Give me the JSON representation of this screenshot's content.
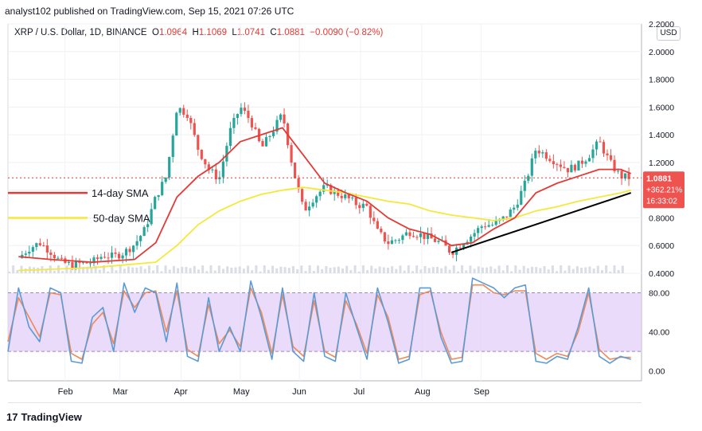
{
  "header": {
    "publisher_line": "analyst102 published on TradingView.com, Sep 15, 2021 07:26 UTC"
  },
  "legend": {
    "symbol": "XRP / U.S. Dollar, 1D, BINANCE",
    "open_label": "O",
    "open": "1.0964",
    "high_label": "H",
    "high": "1.1069",
    "low_label": "L",
    "low": "1.0741",
    "close_label": "C",
    "close": "1.0881",
    "change": "−0.0090 (−0.82%)"
  },
  "currency_button": "USD",
  "price_tag": {
    "price": "1.0881",
    "change": "+362.21%",
    "countdown": "16:33:02"
  },
  "annotations": {
    "sma14": "14-day SMA",
    "sma50": "50-day SMA"
  },
  "footer": {
    "brand": "TradingView"
  },
  "colors": {
    "up": "#26a69a",
    "down": "#ef5350",
    "sma14": "#e53935",
    "sma50": "#f5e83a",
    "stoch_k": "#5b9bd5",
    "stoch_d": "#f0885a",
    "band_fill": "#e1cff7",
    "trendline": "#000000"
  },
  "chart_data": [
    {
      "type": "candlestick",
      "title": "XRP / U.S. Dollar, 1D, BINANCE",
      "x_tick_labels": [
        "Feb",
        "Mar",
        "Apr",
        "May",
        "Jun",
        "Jul",
        "Aug",
        "Sep"
      ],
      "y_tick_labels": [
        "0.4000",
        "0.6000",
        "0.8000",
        "1.0000",
        "1.2000",
        "1.4000",
        "1.6000",
        "1.8000",
        "2.0000",
        "2.2000"
      ],
      "ylim": [
        0.4,
        2.2
      ],
      "close_path": [
        [
          0.5,
          0.51
        ],
        [
          1.0,
          0.58
        ],
        [
          1.5,
          0.62
        ],
        [
          2.0,
          0.56
        ],
        [
          2.5,
          0.48
        ],
        [
          3.0,
          0.46
        ],
        [
          3.5,
          0.47
        ],
        [
          4.0,
          0.48
        ],
        [
          4.5,
          0.53
        ],
        [
          5.0,
          0.52
        ],
        [
          5.5,
          0.55
        ],
        [
          6.0,
          0.61
        ],
        [
          6.5,
          0.72
        ],
        [
          7.0,
          0.95
        ],
        [
          7.5,
          1.1
        ],
        [
          8.0,
          1.6
        ],
        [
          8.5,
          1.55
        ],
        [
          9.0,
          1.3
        ],
        [
          9.5,
          1.15
        ],
        [
          10.0,
          1.08
        ],
        [
          10.5,
          1.42
        ],
        [
          11.0,
          1.6
        ],
        [
          11.5,
          1.5
        ],
        [
          12.0,
          1.3
        ],
        [
          12.5,
          1.42
        ],
        [
          13.0,
          1.55
        ],
        [
          13.5,
          1.15
        ],
        [
          14.0,
          0.85
        ],
        [
          14.5,
          0.95
        ],
        [
          15.0,
          1.02
        ],
        [
          15.5,
          0.98
        ],
        [
          16.0,
          0.95
        ],
        [
          16.5,
          0.9
        ],
        [
          17.0,
          0.88
        ],
        [
          17.5,
          0.7
        ],
        [
          18.0,
          0.62
        ],
        [
          18.5,
          0.65
        ],
        [
          19.0,
          0.7
        ],
        [
          19.5,
          0.68
        ],
        [
          20.0,
          0.65
        ],
        [
          20.5,
          0.62
        ],
        [
          21.0,
          0.55
        ],
        [
          21.5,
          0.62
        ],
        [
          22.0,
          0.68
        ],
        [
          22.5,
          0.75
        ],
        [
          23.0,
          0.75
        ],
        [
          23.5,
          0.8
        ],
        [
          24.0,
          0.88
        ],
        [
          24.5,
          1.05
        ],
        [
          25.0,
          1.3
        ],
        [
          25.5,
          1.25
        ],
        [
          26.0,
          1.2
        ],
        [
          26.5,
          1.15
        ],
        [
          27.0,
          1.18
        ],
        [
          27.5,
          1.25
        ],
        [
          28.0,
          1.35
        ],
        [
          28.5,
          1.2
        ],
        [
          29.0,
          1.1
        ],
        [
          29.5,
          1.0886
        ]
      ],
      "sma14": [
        [
          0.5,
          0.52
        ],
        [
          2,
          0.5
        ],
        [
          4,
          0.48
        ],
        [
          6,
          0.5
        ],
        [
          7,
          0.62
        ],
        [
          8,
          0.95
        ],
        [
          9,
          1.1
        ],
        [
          10,
          1.2
        ],
        [
          11,
          1.35
        ],
        [
          12,
          1.4
        ],
        [
          13,
          1.45
        ],
        [
          14,
          1.25
        ],
        [
          15,
          1.05
        ],
        [
          16,
          0.98
        ],
        [
          17,
          0.92
        ],
        [
          18,
          0.8
        ],
        [
          19,
          0.72
        ],
        [
          20,
          0.68
        ],
        [
          21,
          0.6
        ],
        [
          22,
          0.62
        ],
        [
          23,
          0.72
        ],
        [
          24,
          0.8
        ],
        [
          25,
          0.98
        ],
        [
          26,
          1.05
        ],
        [
          27,
          1.1
        ],
        [
          28,
          1.15
        ],
        [
          29,
          1.15
        ],
        [
          29.5,
          1.12
        ]
      ],
      "sma50": [
        [
          0.5,
          0.42
        ],
        [
          4,
          0.44
        ],
        [
          7,
          0.48
        ],
        [
          8,
          0.6
        ],
        [
          9,
          0.75
        ],
        [
          10,
          0.85
        ],
        [
          11,
          0.92
        ],
        [
          12,
          0.97
        ],
        [
          13,
          1.0
        ],
        [
          14,
          1.02
        ],
        [
          15,
          1.0
        ],
        [
          16,
          0.98
        ],
        [
          17,
          0.95
        ],
        [
          18,
          0.92
        ],
        [
          19,
          0.9
        ],
        [
          20,
          0.85
        ],
        [
          21,
          0.82
        ],
        [
          22,
          0.8
        ],
        [
          23,
          0.78
        ],
        [
          24,
          0.8
        ],
        [
          25,
          0.85
        ],
        [
          26,
          0.88
        ],
        [
          27,
          0.92
        ],
        [
          28,
          0.95
        ],
        [
          29,
          0.98
        ],
        [
          29.5,
          1.0
        ]
      ],
      "trendline": [
        [
          21.0,
          0.55
        ],
        [
          29.5,
          0.98
        ]
      ],
      "last_price": 1.0881,
      "last_price_line": 1.0886
    },
    {
      "type": "line",
      "name": "Stochastic",
      "y_tick_labels": [
        "0.00",
        "40.00",
        "80.00"
      ],
      "ylim": [
        -10,
        100
      ],
      "band": [
        20,
        80
      ],
      "k": [
        [
          0,
          20
        ],
        [
          0.5,
          85
        ],
        [
          1.0,
          45
        ],
        [
          1.5,
          30
        ],
        [
          2.0,
          85
        ],
        [
          2.5,
          80
        ],
        [
          3.0,
          10
        ],
        [
          3.5,
          8
        ],
        [
          4.0,
          55
        ],
        [
          4.5,
          65
        ],
        [
          5.0,
          20
        ],
        [
          5.5,
          90
        ],
        [
          6.0,
          60
        ],
        [
          6.5,
          85
        ],
        [
          7.0,
          80
        ],
        [
          7.5,
          30
        ],
        [
          8.0,
          90
        ],
        [
          8.5,
          15
        ],
        [
          9.0,
          10
        ],
        [
          9.5,
          75
        ],
        [
          10.0,
          20
        ],
        [
          10.5,
          45
        ],
        [
          11.0,
          20
        ],
        [
          11.5,
          92
        ],
        [
          12.0,
          55
        ],
        [
          12.5,
          12
        ],
        [
          13.0,
          85
        ],
        [
          13.5,
          20
        ],
        [
          14.0,
          10
        ],
        [
          14.5,
          80
        ],
        [
          15.0,
          15
        ],
        [
          15.5,
          10
        ],
        [
          16.0,
          80
        ],
        [
          16.5,
          45
        ],
        [
          17.0,
          12
        ],
        [
          17.5,
          85
        ],
        [
          18.0,
          50
        ],
        [
          18.5,
          8
        ],
        [
          19.0,
          12
        ],
        [
          19.5,
          85
        ],
        [
          20.0,
          85
        ],
        [
          20.5,
          35
        ],
        [
          21.0,
          8
        ],
        [
          21.5,
          10
        ],
        [
          22.0,
          95
        ],
        [
          22.5,
          90
        ],
        [
          23.0,
          85
        ],
        [
          23.5,
          75
        ],
        [
          24.0,
          85
        ],
        [
          24.5,
          88
        ],
        [
          25.0,
          10
        ],
        [
          25.5,
          8
        ],
        [
          26.0,
          15
        ],
        [
          26.5,
          12
        ],
        [
          27.0,
          45
        ],
        [
          27.5,
          85
        ],
        [
          28.0,
          15
        ],
        [
          28.5,
          8
        ],
        [
          29.0,
          15
        ],
        [
          29.5,
          12
        ]
      ],
      "d": [
        [
          0,
          30
        ],
        [
          0.5,
          75
        ],
        [
          1.0,
          55
        ],
        [
          1.5,
          35
        ],
        [
          2.0,
          80
        ],
        [
          2.5,
          78
        ],
        [
          3.0,
          18
        ],
        [
          3.5,
          12
        ],
        [
          4.0,
          48
        ],
        [
          4.5,
          60
        ],
        [
          5.0,
          28
        ],
        [
          5.5,
          82
        ],
        [
          6.0,
          65
        ],
        [
          6.5,
          80
        ],
        [
          7.0,
          82
        ],
        [
          7.5,
          40
        ],
        [
          8.0,
          82
        ],
        [
          8.5,
          22
        ],
        [
          9.0,
          15
        ],
        [
          9.5,
          68
        ],
        [
          10.0,
          28
        ],
        [
          10.5,
          42
        ],
        [
          11.0,
          25
        ],
        [
          11.5,
          85
        ],
        [
          12.0,
          60
        ],
        [
          12.5,
          18
        ],
        [
          13.0,
          78
        ],
        [
          13.5,
          25
        ],
        [
          14.0,
          15
        ],
        [
          14.5,
          72
        ],
        [
          15.0,
          20
        ],
        [
          15.5,
          14
        ],
        [
          16.0,
          72
        ],
        [
          16.5,
          48
        ],
        [
          17.0,
          18
        ],
        [
          17.5,
          78
        ],
        [
          18.0,
          55
        ],
        [
          18.5,
          12
        ],
        [
          19.0,
          15
        ],
        [
          19.5,
          78
        ],
        [
          20.0,
          82
        ],
        [
          20.5,
          40
        ],
        [
          21.0,
          12
        ],
        [
          21.5,
          14
        ],
        [
          22.0,
          88
        ],
        [
          22.5,
          88
        ],
        [
          23.0,
          80
        ],
        [
          23.5,
          78
        ],
        [
          24.0,
          82
        ],
        [
          24.5,
          82
        ],
        [
          25.0,
          18
        ],
        [
          25.5,
          12
        ],
        [
          26.0,
          18
        ],
        [
          26.5,
          15
        ],
        [
          27.0,
          40
        ],
        [
          27.5,
          80
        ],
        [
          28.0,
          22
        ],
        [
          28.5,
          12
        ],
        [
          29.0,
          14
        ],
        [
          29.5,
          14
        ]
      ]
    }
  ]
}
